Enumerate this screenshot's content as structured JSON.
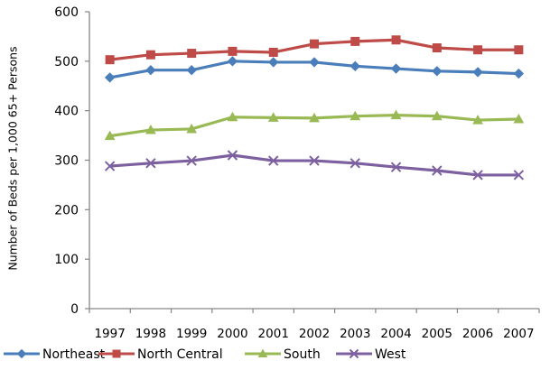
{
  "chart_data": {
    "type": "line",
    "title": "",
    "xlabel": "",
    "ylabel": "Number of Beds per 1,000 65+ Persons",
    "ylim": [
      0,
      600
    ],
    "yticks": [
      0,
      100,
      200,
      300,
      400,
      500,
      600
    ],
    "grid": false,
    "legend_position": "bottom",
    "categories": [
      "1997",
      "1998",
      "1999",
      "2000",
      "2001",
      "2002",
      "2003",
      "2004",
      "2005",
      "2006",
      "2007"
    ],
    "series": [
      {
        "name": "Northeast",
        "color": "#4a7ebb",
        "marker": "diamond",
        "values": [
          467,
          482,
          482,
          500,
          498,
          498,
          490,
          485,
          480,
          478,
          475
        ]
      },
      {
        "name": "North Central",
        "color": "#be4b48",
        "marker": "square",
        "values": [
          503,
          513,
          516,
          520,
          518,
          535,
          540,
          543,
          527,
          523,
          523
        ]
      },
      {
        "name": "South",
        "color": "#98b954",
        "marker": "triangle",
        "values": [
          349,
          361,
          363,
          387,
          386,
          385,
          389,
          391,
          389,
          381,
          383
        ]
      },
      {
        "name": "West",
        "color": "#7d60a0",
        "marker": "x",
        "values": [
          288,
          294,
          299,
          310,
          299,
          299,
          294,
          286,
          279,
          270,
          270
        ]
      }
    ]
  }
}
